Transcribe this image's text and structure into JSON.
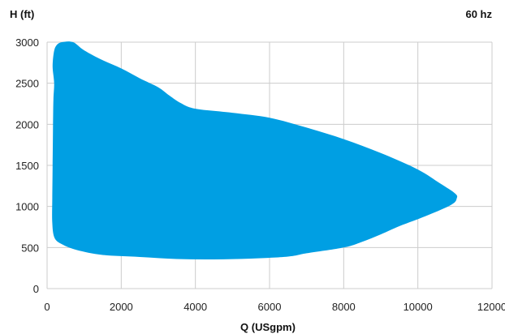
{
  "chart_data": {
    "type": "area",
    "title": "",
    "ylabel": "H (ft)",
    "xlabel": "Q (USgpm)",
    "annotation": "60 hz",
    "xlim": [
      0,
      12000
    ],
    "ylim": [
      0,
      3000
    ],
    "xticks": [
      0,
      2000,
      4000,
      6000,
      8000,
      10000,
      12000
    ],
    "yticks": [
      0,
      500,
      1000,
      1500,
      2000,
      2500,
      3000
    ],
    "grid": true,
    "fill_color": "#009fe3",
    "grid_color": "#cccccc",
    "series": [
      {
        "values_xy": [
          [
            250,
            2960
          ],
          [
            400,
            3000
          ],
          [
            700,
            3000
          ],
          [
            1000,
            2900
          ],
          [
            1500,
            2780
          ],
          [
            2000,
            2680
          ],
          [
            2500,
            2560
          ],
          [
            3000,
            2450
          ],
          [
            3300,
            2350
          ],
          [
            3600,
            2260
          ],
          [
            4000,
            2190
          ],
          [
            5000,
            2140
          ],
          [
            6000,
            2080
          ],
          [
            7000,
            1960
          ],
          [
            8000,
            1820
          ],
          [
            9000,
            1650
          ],
          [
            10000,
            1450
          ],
          [
            10600,
            1280
          ],
          [
            11000,
            1160
          ],
          [
            11050,
            1100
          ],
          [
            10900,
            1020
          ],
          [
            10200,
            880
          ],
          [
            9500,
            760
          ],
          [
            9000,
            660
          ],
          [
            8500,
            570
          ],
          [
            8000,
            500
          ],
          [
            7000,
            430
          ],
          [
            6500,
            390
          ],
          [
            5500,
            365
          ],
          [
            4500,
            355
          ],
          [
            3500,
            360
          ],
          [
            2500,
            385
          ],
          [
            1500,
            410
          ],
          [
            800,
            470
          ],
          [
            400,
            540
          ],
          [
            200,
            620
          ],
          [
            140,
            800
          ],
          [
            140,
            1100
          ],
          [
            150,
            1500
          ],
          [
            160,
            2000
          ],
          [
            170,
            2300
          ],
          [
            190,
            2500
          ],
          [
            150,
            2700
          ],
          [
            180,
            2870
          ]
        ]
      }
    ]
  }
}
